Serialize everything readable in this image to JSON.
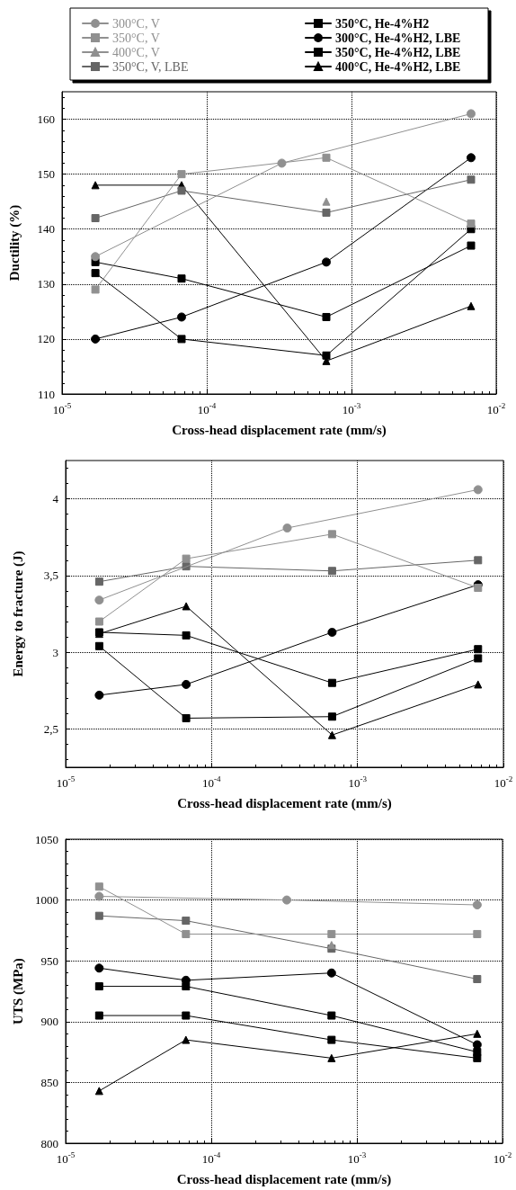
{
  "chart_data": [
    {
      "type": "line",
      "xlabel": "Cross-head displacement rate (mm/s)",
      "ylabel": "Ductility (%)",
      "log": "x",
      "grid": true,
      "legend": "top",
      "line_style": "solid",
      "xlim": [
        1e-05,
        0.01
      ],
      "xticks": [
        {
          "value": 1e-05,
          "label": "10$^{-5}$"
        },
        {
          "value": 0.0001,
          "label": "10$^{-4}$"
        },
        {
          "value": 0.001,
          "label": "10$^{-3}$"
        },
        {
          "value": 0.01,
          "label": "10$^{-2}$"
        }
      ],
      "ylim": [
        110,
        165
      ],
      "yticks": [
        110,
        120,
        130,
        140,
        150,
        160
      ],
      "x": [
        1.7e-05,
        6.7e-05,
        0.00067,
        0.0067
      ],
      "series": [
        {
          "name": "300°C, V",
          "color": "#909090",
          "marker": "circle",
          "x": [
            1.7e-05,
            0.00033,
            0.0067
          ],
          "values": [
            135,
            152,
            161
          ]
        },
        {
          "name": "350°C, V",
          "color": "#909090",
          "marker": "square",
          "values": [
            129,
            150,
            153,
            141
          ]
        },
        {
          "name": "400°C, V",
          "color": "#909090",
          "marker": "triangle",
          "values": [
            null,
            null,
            145,
            null
          ]
        },
        {
          "name": "350°C, V, LBE",
          "color": "#666666",
          "marker": "square",
          "values": [
            142,
            147,
            143,
            149
          ]
        },
        {
          "name": "350°C, He-4%H2",
          "color": "#000000",
          "marker": "square",
          "values": [
            134,
            131,
            124,
            137
          ]
        },
        {
          "name": "300°C, He-4%H2, LBE",
          "color": "#000000",
          "marker": "circle",
          "values": [
            120,
            124,
            134,
            153
          ]
        },
        {
          "name": "350°C, He-4%H2, LBE",
          "color": "#000000",
          "marker": "square",
          "values": [
            132,
            120,
            117,
            140
          ]
        },
        {
          "name": "400°C, He-4%H2, LBE",
          "color": "#000000",
          "marker": "triangle",
          "values": [
            148,
            148,
            116,
            126
          ]
        }
      ]
    },
    {
      "type": "line",
      "xlabel": "Cross-head displacement rate (mm/s)",
      "ylabel": "Energy to fracture (J)",
      "log": "x",
      "grid": true,
      "line_style": "solid",
      "xlim": [
        1e-05,
        0.01
      ],
      "xticks": [
        {
          "value": 1e-05,
          "label": "10$^{-5}$"
        },
        {
          "value": 0.0001,
          "label": "10$^{-4}$"
        },
        {
          "value": 0.001,
          "label": "10$^{-3}$"
        },
        {
          "value": 0.01,
          "label": "10$^{-2}$"
        }
      ],
      "ylim": [
        2.25,
        4.25
      ],
      "yticks": [
        {
          "value": 2.5,
          "label": "2,5"
        },
        3,
        {
          "value": 3.5,
          "label": "3,5"
        },
        4
      ],
      "x": [
        1.7e-05,
        6.7e-05,
        0.00067,
        0.0067
      ],
      "series": [
        {
          "color": "#909090",
          "marker": "circle",
          "x": [
            1.7e-05,
            0.00033,
            0.0067
          ],
          "values": [
            3.34,
            3.81,
            4.06
          ]
        },
        {
          "color": "#909090",
          "marker": "square",
          "values": [
            3.2,
            3.61,
            3.77,
            3.42
          ]
        },
        {
          "color": "#666666",
          "marker": "square",
          "values": [
            3.46,
            3.56,
            3.53,
            3.6
          ]
        },
        {
          "color": "#000000",
          "marker": "square",
          "values": [
            3.13,
            3.11,
            2.8,
            3.02
          ]
        },
        {
          "color": "#000000",
          "marker": "circle",
          "values": [
            2.72,
            2.79,
            3.13,
            3.44
          ]
        },
        {
          "color": "#000000",
          "marker": "square",
          "values": [
            3.04,
            2.57,
            2.58,
            2.96
          ]
        },
        {
          "color": "#000000",
          "marker": "triangle",
          "values": [
            3.12,
            3.3,
            2.46,
            2.79
          ]
        }
      ]
    },
    {
      "type": "line",
      "xlabel": "Cross-head displacement rate (mm/s)",
      "ylabel": "UTS (MPa)",
      "log": "x",
      "grid": true,
      "line_style": "solid",
      "xlim": [
        1e-05,
        0.01
      ],
      "xticks": [
        {
          "value": 1e-05,
          "label": "10$^{-5}$"
        },
        {
          "value": 0.0001,
          "label": "10$^{-4}$"
        },
        {
          "value": 0.001,
          "label": "10$^{-3}$"
        },
        {
          "value": 0.01,
          "label": "10$^{-2}$"
        }
      ],
      "ylim": [
        800,
        1050
      ],
      "yticks": [
        800,
        850,
        900,
        950,
        1000,
        1050
      ],
      "x": [
        1.7e-05,
        6.7e-05,
        0.00067,
        0.0067
      ],
      "series": [
        {
          "color": "#909090",
          "marker": "circle",
          "x": [
            1.7e-05,
            0.00033,
            0.0067
          ],
          "values": [
            1003,
            1000,
            996
          ]
        },
        {
          "color": "#909090",
          "marker": "square",
          "values": [
            1011,
            972,
            972,
            972
          ]
        },
        {
          "color": "#909090",
          "marker": "triangle",
          "values": [
            null,
            null,
            963,
            null
          ]
        },
        {
          "color": "#666666",
          "marker": "square",
          "values": [
            987,
            983,
            960,
            935
          ]
        },
        {
          "color": "#000000",
          "marker": "square",
          "values": [
            929,
            929,
            905,
            875
          ]
        },
        {
          "color": "#000000",
          "marker": "circle",
          "values": [
            944,
            934,
            940,
            881
          ]
        },
        {
          "color": "#000000",
          "marker": "square",
          "values": [
            905,
            905,
            885,
            870
          ]
        },
        {
          "color": "#000000",
          "marker": "triangle",
          "values": [
            843,
            885,
            870,
            890
          ]
        }
      ]
    }
  ]
}
